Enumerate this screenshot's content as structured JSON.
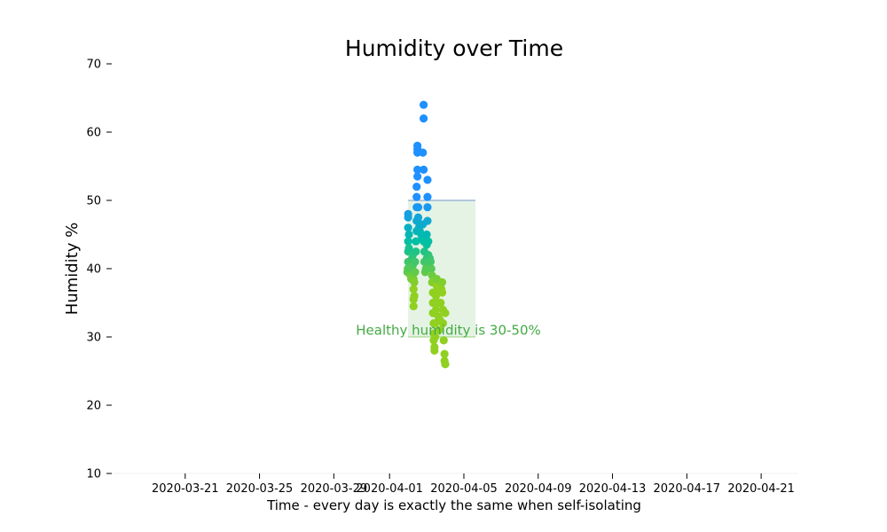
{
  "chart_data": {
    "type": "scatter",
    "title": "Humidity over Time",
    "xlabel": "Time - every day is exactly the same when self-isolating",
    "ylabel": "Humidity %",
    "ylim": [
      10,
      70
    ],
    "yticks": [
      10,
      20,
      30,
      40,
      50,
      60,
      70
    ],
    "xlim": [
      "2020-03-17",
      "2020-04-23"
    ],
    "xticks": [
      "2020-03-21",
      "2020-03-25",
      "2020-03-29",
      "2020-04-01",
      "2020-04-05",
      "2020-04-09",
      "2020-04-13",
      "2020-04-17",
      "2020-04-21"
    ],
    "grid": false,
    "healthy_band": {
      "from": "2020-04-02",
      "to": "2020-04-05 15:00",
      "y_low": 30,
      "y_high": 50,
      "color": "#2ca02c"
    },
    "annotation": {
      "text": "Healthy humidity is 30-50%",
      "x": "2020-04-04 04:00",
      "y": 31,
      "color": "#44aa44"
    },
    "color_scale": {
      "high": "#1e90ff",
      "mid": "#00bfa5",
      "low": "#90d020"
    },
    "series": [
      {
        "points": [
          [
            "2020-04-01 23:00",
            39.5
          ],
          [
            "2020-04-01 23:30",
            40.0
          ],
          [
            "2020-04-02 00:00",
            41.0
          ],
          [
            "2020-04-02 00:00",
            42.5
          ],
          [
            "2020-04-02 00:00",
            44.0
          ],
          [
            "2020-04-02 00:00",
            46.0
          ],
          [
            "2020-04-02 00:00",
            47.5
          ],
          [
            "2020-04-02 00:00",
            48.0
          ],
          [
            "2020-04-02 01:00",
            45.0
          ],
          [
            "2020-04-02 01:00",
            43.0
          ],
          [
            "2020-04-02 02:00",
            41.0
          ],
          [
            "2020-04-02 02:00",
            40.0
          ],
          [
            "2020-04-02 03:00",
            39.0
          ],
          [
            "2020-04-02 04:00",
            38.5
          ],
          [
            "2020-04-02 05:00",
            40.0
          ],
          [
            "2020-04-02 05:00",
            41.5
          ],
          [
            "2020-04-02 06:00",
            42.0
          ],
          [
            "2020-04-02 06:00",
            40.5
          ],
          [
            "2020-04-02 07:00",
            38.5
          ],
          [
            "2020-04-02 07:00",
            37.0
          ],
          [
            "2020-04-02 07:00",
            35.5
          ],
          [
            "2020-04-02 07:00",
            34.5
          ],
          [
            "2020-04-02 08:00",
            36.0
          ],
          [
            "2020-04-02 08:00",
            38.0
          ],
          [
            "2020-04-02 09:00",
            39.5
          ],
          [
            "2020-04-02 09:00",
            41.0
          ],
          [
            "2020-04-02 10:00",
            42.5
          ],
          [
            "2020-04-02 10:00",
            44.0
          ],
          [
            "2020-04-02 11:00",
            45.5
          ],
          [
            "2020-04-02 11:00",
            47.0
          ],
          [
            "2020-04-02 11:00",
            49.0
          ],
          [
            "2020-04-02 11:00",
            50.5
          ],
          [
            "2020-04-02 11:00",
            52.0
          ],
          [
            "2020-04-02 12:00",
            53.5
          ],
          [
            "2020-04-02 12:00",
            54.5
          ],
          [
            "2020-04-02 12:00",
            57.0
          ],
          [
            "2020-04-02 12:00",
            57.5
          ],
          [
            "2020-04-02 12:00",
            58.0
          ],
          [
            "2020-04-02 13:00",
            49.0
          ],
          [
            "2020-04-02 13:00",
            47.5
          ],
          [
            "2020-04-02 14:00",
            46.0
          ],
          [
            "2020-04-02 15:00",
            45.5
          ],
          [
            "2020-04-02 16:00",
            46.5
          ],
          [
            "2020-04-02 17:00",
            45.0
          ],
          [
            "2020-04-02 18:00",
            44.5
          ],
          [
            "2020-04-02 19:00",
            46.5
          ],
          [
            "2020-04-02 19:00",
            57.0
          ],
          [
            "2020-04-02 20:00",
            64.0
          ],
          [
            "2020-04-02 20:00",
            62.0
          ],
          [
            "2020-04-02 20:00",
            54.5
          ],
          [
            "2020-04-02 20:00",
            44.0
          ],
          [
            "2020-04-02 21:00",
            42.5
          ],
          [
            "2020-04-02 21:00",
            41.0
          ],
          [
            "2020-04-02 22:00",
            39.5
          ],
          [
            "2020-04-02 23:00",
            40.0
          ],
          [
            "2020-04-03 00:00",
            41.5
          ],
          [
            "2020-04-03 00:00",
            43.5
          ],
          [
            "2020-04-03 00:00",
            45.0
          ],
          [
            "2020-04-03 01:00",
            47.0
          ],
          [
            "2020-04-03 01:00",
            49.0
          ],
          [
            "2020-04-03 01:00",
            50.5
          ],
          [
            "2020-04-03 01:00",
            53.0
          ],
          [
            "2020-04-03 02:00",
            44.0
          ],
          [
            "2020-04-03 02:00",
            42.0
          ],
          [
            "2020-04-03 03:00",
            41.0
          ],
          [
            "2020-04-03 04:00",
            41.5
          ],
          [
            "2020-04-03 05:00",
            41.0
          ],
          [
            "2020-04-03 06:00",
            40.0
          ],
          [
            "2020-04-03 07:00",
            39.0
          ],
          [
            "2020-04-03 07:00",
            38.0
          ],
          [
            "2020-04-03 08:00",
            36.5
          ],
          [
            "2020-04-03 08:00",
            35.0
          ],
          [
            "2020-04-03 08:00",
            33.5
          ],
          [
            "2020-04-03 09:00",
            32.0
          ],
          [
            "2020-04-03 09:00",
            30.5
          ],
          [
            "2020-04-03 09:00",
            29.5
          ],
          [
            "2020-04-03 10:00",
            28.5
          ],
          [
            "2020-04-03 10:00",
            28.0
          ],
          [
            "2020-04-03 11:00",
            30.0
          ],
          [
            "2020-04-03 11:00",
            32.0
          ],
          [
            "2020-04-03 12:00",
            34.0
          ],
          [
            "2020-04-03 12:00",
            36.0
          ],
          [
            "2020-04-03 13:00",
            37.5
          ],
          [
            "2020-04-03 13:00",
            38.5
          ],
          [
            "2020-04-03 14:00",
            37.0
          ],
          [
            "2020-04-03 15:00",
            35.0
          ],
          [
            "2020-04-03 15:00",
            33.0
          ],
          [
            "2020-04-03 16:00",
            31.0
          ],
          [
            "2020-04-03 17:00",
            32.5
          ],
          [
            "2020-04-03 18:00",
            35.0
          ],
          [
            "2020-04-03 19:00",
            37.0
          ],
          [
            "2020-04-03 20:00",
            38.0
          ],
          [
            "2020-04-03 20:00",
            36.5
          ],
          [
            "2020-04-03 21:00",
            34.0
          ],
          [
            "2020-04-03 21:00",
            32.0
          ],
          [
            "2020-04-03 22:00",
            29.5
          ],
          [
            "2020-04-03 23:00",
            27.5
          ],
          [
            "2020-04-03 23:00",
            26.5
          ],
          [
            "2020-04-04 00:00",
            26.0
          ],
          [
            "2020-04-04 00:00",
            33.5
          ]
        ]
      }
    ]
  }
}
